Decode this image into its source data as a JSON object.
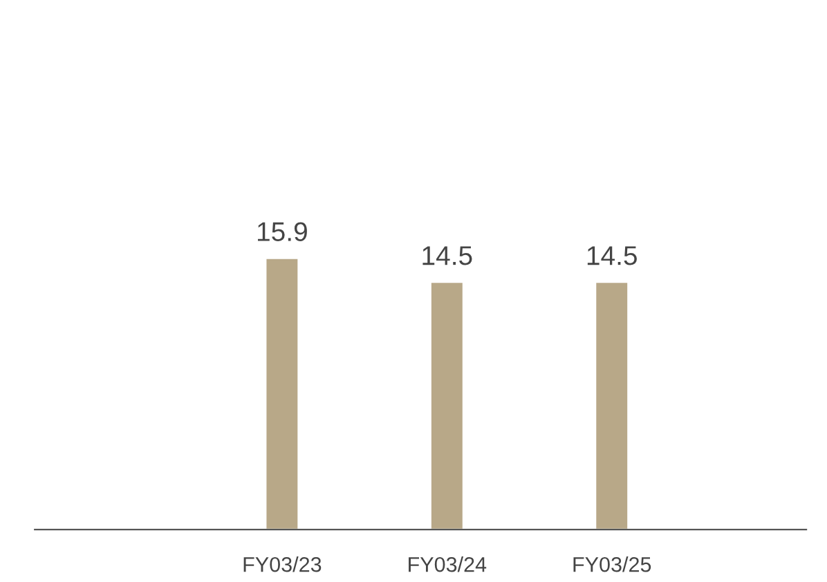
{
  "chart_data": {
    "type": "bar",
    "categories": [
      "FY03/23",
      "FY03/24",
      "FY03/25"
    ],
    "values": [
      15.9,
      14.5,
      14.5
    ],
    "color": "#b8a888",
    "data_labels": true,
    "grid": false,
    "legend": false
  }
}
